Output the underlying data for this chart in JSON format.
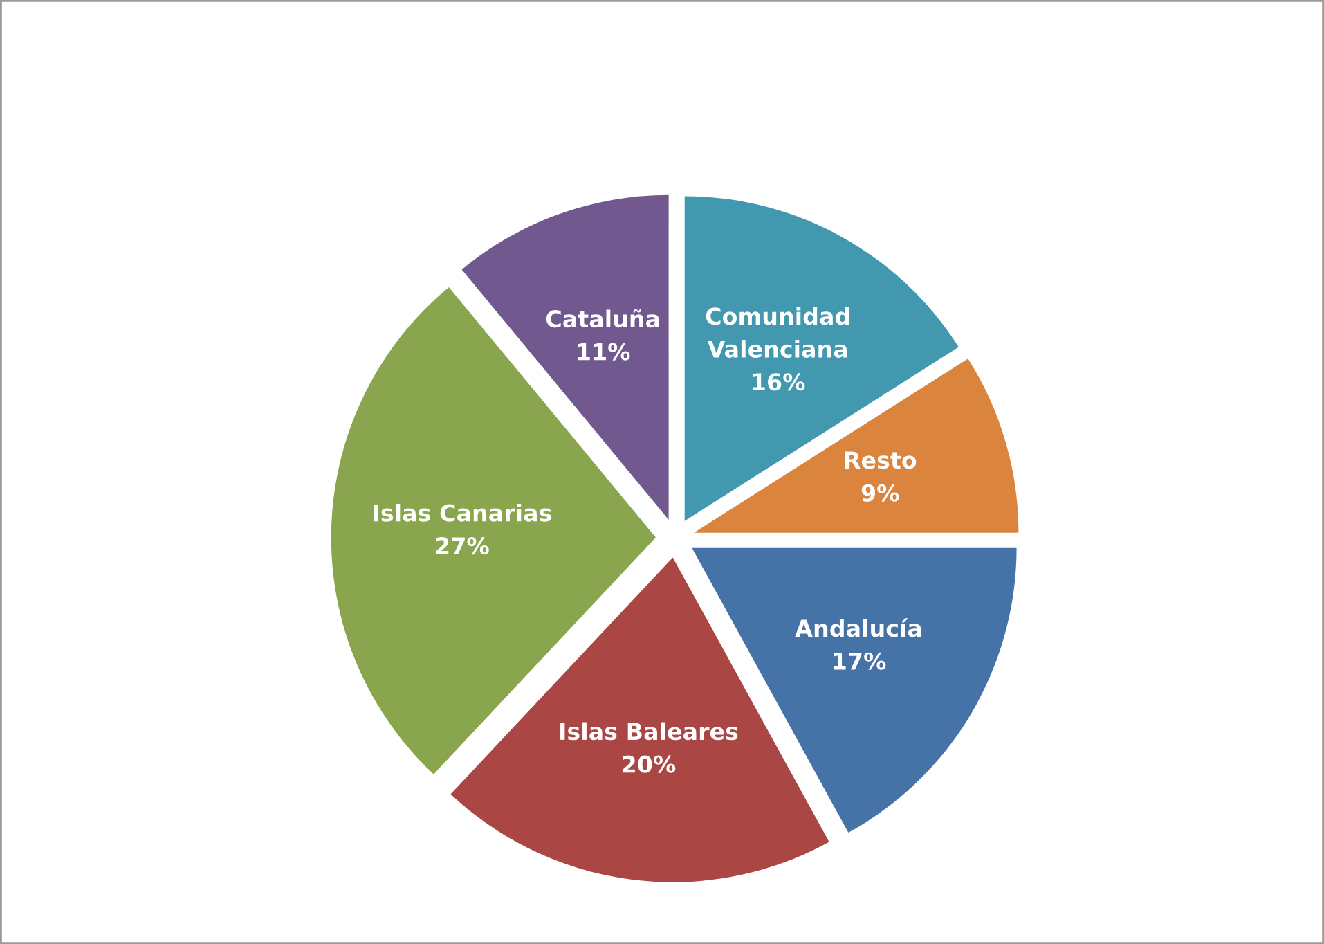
{
  "chart_data": {
    "type": "pie",
    "categories": [
      "Comunidad Valenciana",
      "Resto",
      "Andalucía",
      "Islas Baleares",
      "Islas Canarias",
      "Cataluña"
    ],
    "values": [
      16,
      9,
      17,
      20,
      27,
      11
    ],
    "value_labels": [
      "16%",
      "9%",
      "17%",
      "20%",
      "27%",
      "11%"
    ],
    "colors": [
      "#4198af",
      "#db843d",
      "#4572a7",
      "#aa4643",
      "#89a54e",
      "#71588f"
    ],
    "legend": false
  }
}
